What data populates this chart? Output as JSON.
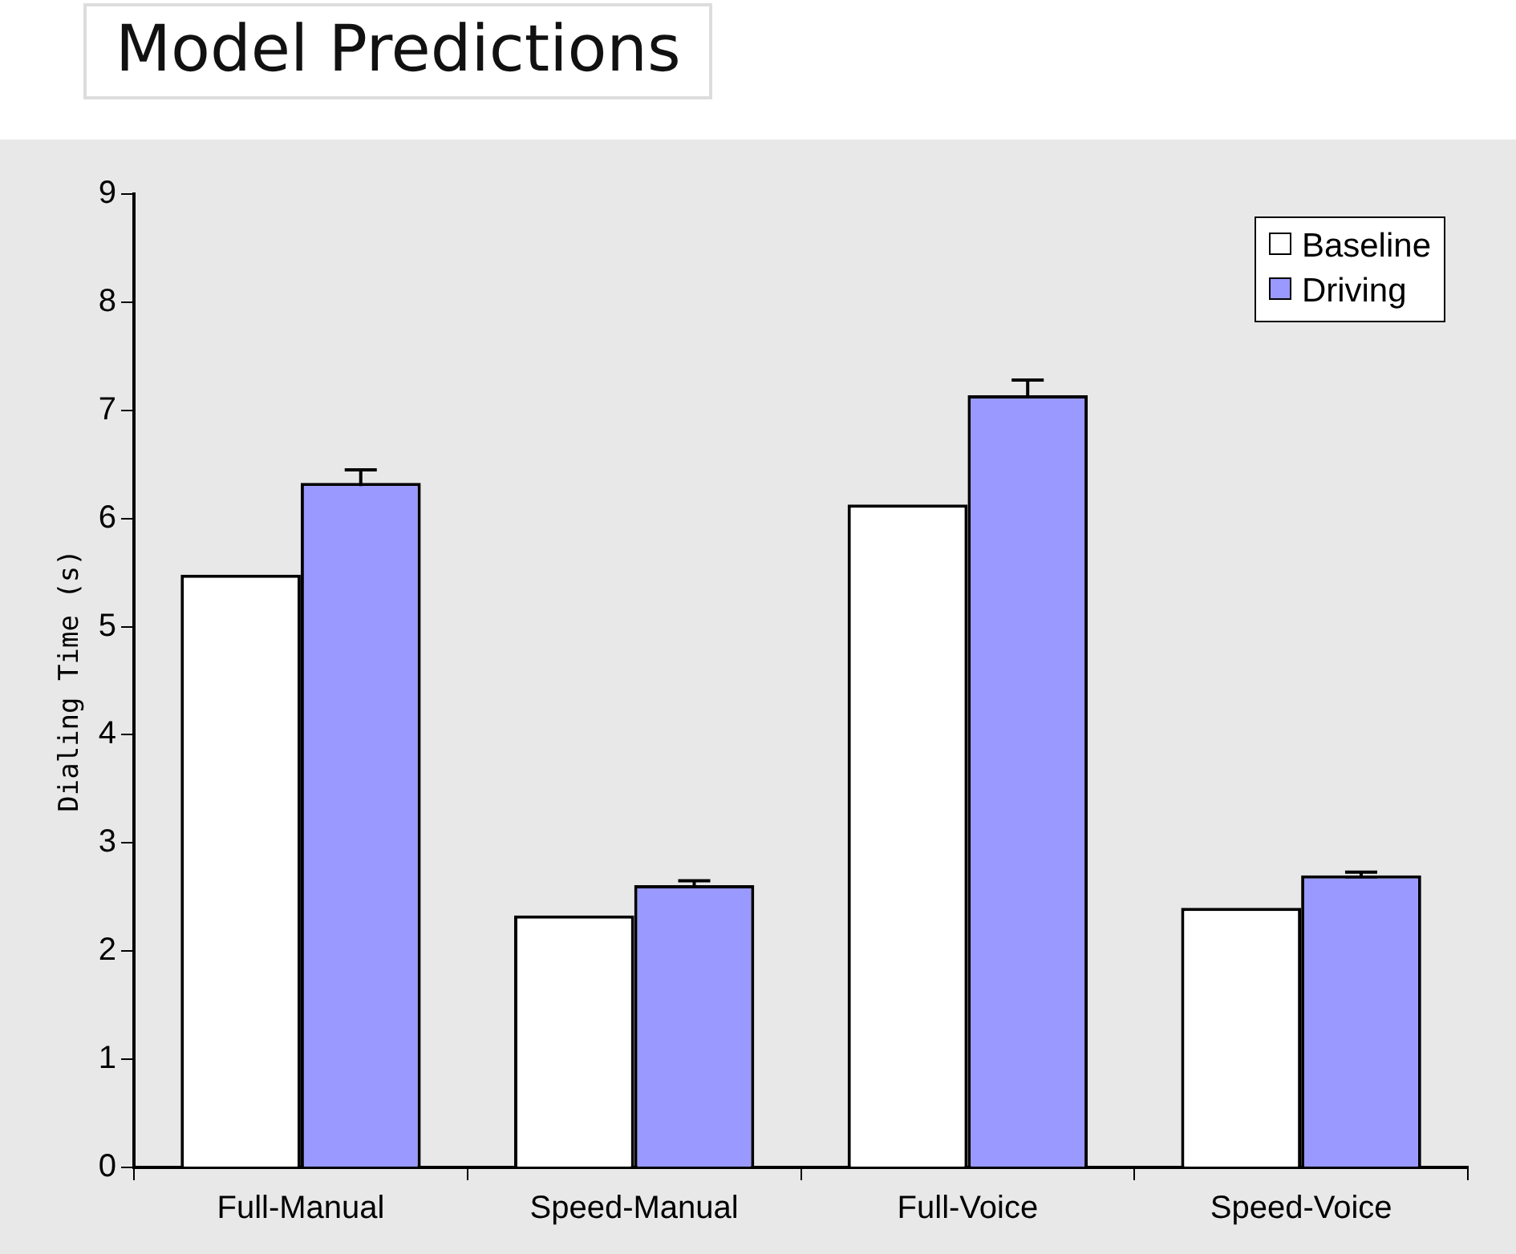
{
  "chart_data": {
    "type": "bar",
    "title": "Model Predictions",
    "ylabel": "Dialing Time (s)",
    "categories": [
      "Full-Manual",
      "Speed-Manual",
      "Full-Voice",
      "Speed-Voice"
    ],
    "series": [
      {
        "name": "Baseline",
        "color": "#ffffff",
        "values": [
          5.48,
          2.33,
          6.13,
          2.4
        ]
      },
      {
        "name": "Driving",
        "color": "#9999ff",
        "values": [
          6.33,
          2.61,
          7.14,
          2.7
        ],
        "errors": [
          0.12,
          0.04,
          0.14,
          0.03
        ]
      }
    ],
    "ylim": [
      0,
      9
    ],
    "yticks": [
      0,
      1,
      2,
      3,
      4,
      5,
      6,
      7,
      8,
      9
    ],
    "grid": false,
    "legend": "top right"
  }
}
